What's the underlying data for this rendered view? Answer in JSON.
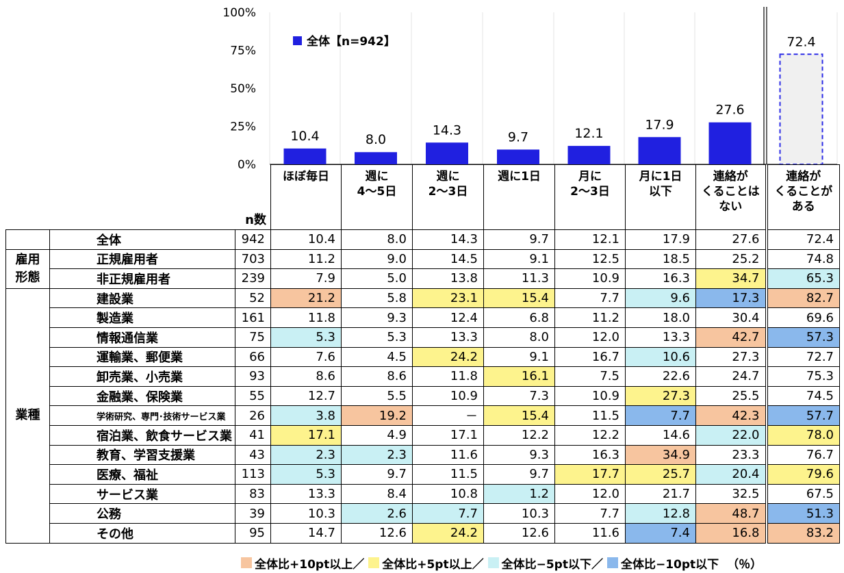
{
  "chart_data": {
    "type": "bar",
    "categories": [
      "ほぼ毎日",
      "週に4～5日",
      "週に2～3日",
      "週に1日",
      "月に2～3日",
      "月に1日以下",
      "連絡がくることはない",
      "連絡がくることがある"
    ],
    "values": [
      10.4,
      8.0,
      14.3,
      9.7,
      12.1,
      17.9,
      27.6,
      72.4
    ],
    "value_labels": [
      "10.4",
      "8.0",
      "14.3",
      "9.7",
      "12.1",
      "17.9",
      "27.6",
      "72.4"
    ],
    "series": [
      {
        "name": "全体【n=942】",
        "values": [
          10.4,
          8.0,
          14.3,
          9.7,
          12.1,
          17.9,
          27.6,
          72.4
        ]
      }
    ],
    "y_ticks": [
      "100%",
      "75%",
      "50%",
      "25%",
      "0%"
    ],
    "ylim": [
      0,
      100
    ],
    "legend_position": "top-left",
    "colors": {
      "bar": "#2020e0",
      "summary_bar_fill": "#f0f0f0",
      "summary_bar_border": "#2a2ae6"
    }
  },
  "table": {
    "n_header": "n数",
    "columns": [
      [
        "ほぼ毎日"
      ],
      [
        "週に",
        "4～5日"
      ],
      [
        "週に",
        "2～3日"
      ],
      [
        "週に1日"
      ],
      [
        "月に",
        "2～3日"
      ],
      [
        "月に1日",
        "以下"
      ],
      [
        "連絡が",
        "くることは",
        "ない"
      ],
      [
        "連絡が",
        "くることが",
        "ある"
      ]
    ],
    "rows": [
      {
        "label": "全体",
        "n": "942",
        "v": [
          "10.4",
          "8.0",
          "14.3",
          "9.7",
          "12.1",
          "17.9",
          "27.6",
          "72.4"
        ],
        "c": [
          "",
          "",
          "",
          "",
          "",
          "",
          "",
          ""
        ]
      },
      {
        "label": "正規雇用者",
        "n": "703",
        "v": [
          "11.2",
          "9.0",
          "14.5",
          "9.1",
          "12.5",
          "18.5",
          "25.2",
          "74.8"
        ],
        "c": [
          "",
          "",
          "",
          "",
          "",
          "",
          "",
          ""
        ]
      },
      {
        "label": "非正規雇用者",
        "n": "239",
        "v": [
          "7.9",
          "5.0",
          "13.8",
          "11.3",
          "10.9",
          "16.3",
          "34.7",
          "65.3"
        ],
        "c": [
          "",
          "",
          "",
          "",
          "",
          "",
          "ye",
          "cy"
        ]
      },
      {
        "label": "建設業",
        "n": "52",
        "v": [
          "21.2",
          "5.8",
          "23.1",
          "15.4",
          "7.7",
          "9.6",
          "17.3",
          "82.7"
        ],
        "c": [
          "or",
          "",
          "ye",
          "ye",
          "",
          "cy",
          "bl",
          "or"
        ]
      },
      {
        "label": "製造業",
        "n": "161",
        "v": [
          "11.8",
          "9.3",
          "12.4",
          "6.8",
          "11.2",
          "18.0",
          "30.4",
          "69.6"
        ],
        "c": [
          "",
          "",
          "",
          "",
          "",
          "",
          "",
          ""
        ]
      },
      {
        "label": "情報通信業",
        "n": "75",
        "v": [
          "5.3",
          "5.3",
          "13.3",
          "8.0",
          "12.0",
          "13.3",
          "42.7",
          "57.3"
        ],
        "c": [
          "cy",
          "",
          "",
          "",
          "",
          "",
          "or",
          "bl"
        ]
      },
      {
        "label": "運輸業、郵便業",
        "n": "66",
        "v": [
          "7.6",
          "4.5",
          "24.2",
          "9.1",
          "16.7",
          "10.6",
          "27.3",
          "72.7"
        ],
        "c": [
          "",
          "",
          "ye",
          "",
          "",
          "cy",
          "",
          ""
        ]
      },
      {
        "label": "卸売業、小売業",
        "n": "93",
        "v": [
          "8.6",
          "8.6",
          "11.8",
          "16.1",
          "7.5",
          "22.6",
          "24.7",
          "75.3"
        ],
        "c": [
          "",
          "",
          "",
          "ye",
          "",
          "",
          "",
          ""
        ]
      },
      {
        "label": "金融業、保険業",
        "n": "55",
        "v": [
          "12.7",
          "5.5",
          "10.9",
          "7.3",
          "10.9",
          "27.3",
          "25.5",
          "74.5"
        ],
        "c": [
          "",
          "",
          "",
          "",
          "",
          "ye",
          "",
          ""
        ]
      },
      {
        "label": "学術研究、専門･技術サービス業",
        "n": "26",
        "v": [
          "3.8",
          "19.2",
          "－",
          "15.4",
          "11.5",
          "7.7",
          "42.3",
          "57.7"
        ],
        "c": [
          "cy",
          "or",
          "",
          "ye",
          "",
          "bl",
          "or",
          "bl"
        ],
        "small": true
      },
      {
        "label": "宿泊業、飲食サービス業",
        "n": "41",
        "v": [
          "17.1",
          "4.9",
          "17.1",
          "12.2",
          "12.2",
          "14.6",
          "22.0",
          "78.0"
        ],
        "c": [
          "ye",
          "",
          "",
          "",
          "",
          "",
          "cy",
          "ye"
        ]
      },
      {
        "label": "教育、学習支援業",
        "n": "43",
        "v": [
          "2.3",
          "2.3",
          "11.6",
          "9.3",
          "16.3",
          "34.9",
          "23.3",
          "76.7"
        ],
        "c": [
          "cy",
          "cy",
          "",
          "",
          "",
          "or",
          "",
          ""
        ]
      },
      {
        "label": "医療、福祉",
        "n": "113",
        "v": [
          "5.3",
          "9.7",
          "11.5",
          "9.7",
          "17.7",
          "25.7",
          "20.4",
          "79.6"
        ],
        "c": [
          "cy",
          "",
          "",
          "",
          "ye",
          "ye",
          "cy",
          "ye"
        ]
      },
      {
        "label": "サービス業",
        "n": "83",
        "v": [
          "13.3",
          "8.4",
          "10.8",
          "1.2",
          "12.0",
          "21.7",
          "32.5",
          "67.5"
        ],
        "c": [
          "",
          "",
          "",
          "cy",
          "",
          "",
          "",
          ""
        ]
      },
      {
        "label": "公務",
        "n": "39",
        "v": [
          "10.3",
          "2.6",
          "7.7",
          "10.3",
          "7.7",
          "12.8",
          "48.7",
          "51.3"
        ],
        "c": [
          "",
          "cy",
          "cy",
          "",
          "",
          "cy",
          "or",
          "bl"
        ]
      },
      {
        "label": "その他",
        "n": "95",
        "v": [
          "14.7",
          "12.6",
          "24.2",
          "12.6",
          "11.6",
          "7.4",
          "16.8",
          "83.2"
        ],
        "c": [
          "",
          "",
          "ye",
          "",
          "",
          "bl",
          "or",
          "or"
        ]
      }
    ],
    "groups": [
      {
        "label_lines": [
          "全体"
        ]
      },
      {
        "label_lines": [
          "雇用",
          "形態"
        ]
      },
      {
        "label_lines": [
          "業種"
        ]
      }
    ]
  },
  "legend": {
    "items": [
      {
        "label": "全体比+10pt以上／",
        "color": "#f7c59f"
      },
      {
        "label": "全体比+5pt以上／",
        "color": "#fdf38d"
      },
      {
        "label": "全体比−5pt以下／",
        "color": "#c9f0f4"
      },
      {
        "label": "全体比−10pt以下",
        "color": "#8ab8ec"
      }
    ],
    "unit": "（％）"
  }
}
